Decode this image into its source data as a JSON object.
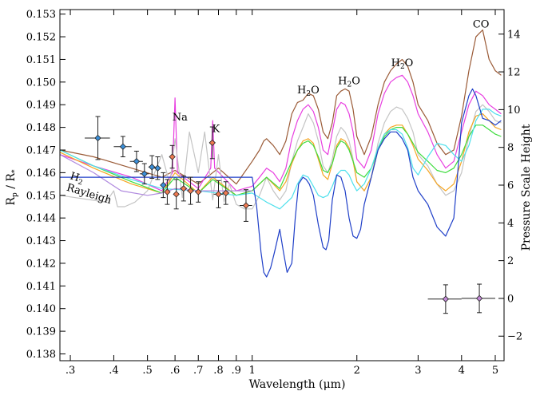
{
  "chart_data": {
    "type": "line",
    "xlabel": "Wavelength (μm)",
    "ylabel_left": "Rp / R*",
    "ylabel_right": "Pressure Scale Height",
    "x_scale": "log",
    "xlim": [
      0.28,
      5.3
    ],
    "ylim": [
      0.1377,
      0.1532
    ],
    "ylim_right": [
      -3.3,
      15.3
    ],
    "x_ticks": [
      {
        "value": 0.3,
        "label": ".3"
      },
      {
        "value": 0.4,
        "label": ".4"
      },
      {
        "value": 0.5,
        "label": ".5"
      },
      {
        "value": 0.6,
        "label": ".6"
      },
      {
        "value": 0.7,
        "label": ".7"
      },
      {
        "value": 0.8,
        "label": ".8"
      },
      {
        "value": 0.9,
        "label": ".9"
      },
      {
        "value": 1,
        "label": "1"
      },
      {
        "value": 2,
        "label": "2"
      },
      {
        "value": 3,
        "label": "3"
      },
      {
        "value": 4,
        "label": "4"
      },
      {
        "value": 5,
        "label": "5"
      }
    ],
    "y_ticks": [
      {
        "value": 0.138,
        "label": "0.138"
      },
      {
        "value": 0.139,
        "label": "0.139"
      },
      {
        "value": 0.14,
        "label": "0.140"
      },
      {
        "value": 0.141,
        "label": "0.141"
      },
      {
        "value": 0.142,
        "label": "0.142"
      },
      {
        "value": 0.143,
        "label": "0.143"
      },
      {
        "value": 0.144,
        "label": "0.144"
      },
      {
        "value": 0.145,
        "label": "0.145"
      },
      {
        "value": 0.146,
        "label": "0.146"
      },
      {
        "value": 0.147,
        "label": "0.147"
      },
      {
        "value": 0.148,
        "label": "0.148"
      },
      {
        "value": 0.149,
        "label": "0.149"
      },
      {
        "value": 0.15,
        "label": "0.150"
      },
      {
        "value": 0.151,
        "label": "0.151"
      },
      {
        "value": 0.152,
        "label": "0.152"
      },
      {
        "value": 0.153,
        "label": "0.153"
      }
    ],
    "y_ticks_right": [
      {
        "value": -2,
        "label": "−2"
      },
      {
        "value": 0,
        "label": "0"
      },
      {
        "value": 2,
        "label": "2"
      },
      {
        "value": 4,
        "label": "4"
      },
      {
        "value": 6,
        "label": "6"
      },
      {
        "value": 8,
        "label": "8"
      },
      {
        "value": 10,
        "label": "10"
      },
      {
        "value": 12,
        "label": "12"
      },
      {
        "value": 14,
        "label": "14"
      }
    ],
    "annotations": [
      {
        "text": "Na",
        "x": 0.62,
        "y": 0.1483
      },
      {
        "text": "K",
        "x": 0.787,
        "y": 0.1478
      },
      {
        "text": "H2O",
        "x": 1.45,
        "y": 0.1495
      },
      {
        "text": "H2O",
        "x": 1.9,
        "y": 0.1499
      },
      {
        "text": "H2O",
        "x": 2.7,
        "y": 0.1507
      },
      {
        "text": "CO",
        "x": 4.55,
        "y": 0.1524
      }
    ],
    "rayleigh_label": {
      "text": "Rayleigh",
      "subscript": "2",
      "prefix": "H"
    },
    "series": [
      {
        "color": "#9a5a36",
        "x": [
          0.28,
          0.35,
          0.45,
          0.55,
          0.6,
          0.7,
          0.8,
          0.9,
          1.0,
          1.05,
          1.08,
          1.1,
          1.15,
          1.2,
          1.25,
          1.3,
          1.35,
          1.4,
          1.45,
          1.5,
          1.55,
          1.6,
          1.65,
          1.7,
          1.75,
          1.8,
          1.85,
          1.9,
          1.95,
          2.0,
          2.1,
          2.2,
          2.3,
          2.4,
          2.5,
          2.6,
          2.7,
          2.8,
          2.9,
          3.0,
          3.2,
          3.4,
          3.6,
          3.8,
          4.0,
          4.2,
          4.4,
          4.6,
          4.8,
          5.0,
          5.2
        ],
        "y": [
          0.147,
          0.1467,
          0.1462,
          0.1458,
          0.1461,
          0.1455,
          0.1462,
          0.1455,
          0.1465,
          0.147,
          0.1474,
          0.1475,
          0.1472,
          0.1468,
          0.1474,
          0.1486,
          0.1491,
          0.1492,
          0.1495,
          0.1494,
          0.1488,
          0.1478,
          0.1475,
          0.1482,
          0.1494,
          0.1496,
          0.1497,
          0.1496,
          0.1488,
          0.1476,
          0.1468,
          0.1476,
          0.149,
          0.15,
          0.1505,
          0.1508,
          0.151,
          0.1507,
          0.15,
          0.149,
          0.1483,
          0.1473,
          0.1468,
          0.147,
          0.1485,
          0.1505,
          0.152,
          0.1523,
          0.151,
          0.1505,
          0.1503
        ]
      },
      {
        "color": "#e83fe0",
        "x": [
          0.28,
          0.35,
          0.45,
          0.55,
          0.59,
          0.6,
          0.61,
          0.7,
          0.76,
          0.77,
          0.78,
          0.9,
          1.0,
          1.05,
          1.1,
          1.15,
          1.2,
          1.25,
          1.3,
          1.35,
          1.4,
          1.45,
          1.5,
          1.55,
          1.6,
          1.65,
          1.7,
          1.75,
          1.8,
          1.85,
          1.9,
          1.95,
          2.0,
          2.1,
          2.2,
          2.3,
          2.4,
          2.5,
          2.6,
          2.7,
          2.8,
          2.9,
          3.0,
          3.2,
          3.4,
          3.6,
          3.8,
          4.0,
          4.2,
          4.4,
          4.6,
          4.8,
          5.0,
          5.2
        ],
        "y": [
          0.1468,
          0.1463,
          0.1458,
          0.1452,
          0.146,
          0.1493,
          0.146,
          0.1453,
          0.1462,
          0.1483,
          0.1462,
          0.1452,
          0.1454,
          0.1458,
          0.1462,
          0.146,
          0.1456,
          0.1462,
          0.1475,
          0.1483,
          0.1488,
          0.149,
          0.1487,
          0.148,
          0.147,
          0.1468,
          0.1478,
          0.1488,
          0.1491,
          0.149,
          0.1486,
          0.1478,
          0.1466,
          0.1462,
          0.147,
          0.1486,
          0.1495,
          0.15,
          0.1502,
          0.1503,
          0.15,
          0.1494,
          0.1486,
          0.1478,
          0.1468,
          0.1462,
          0.1465,
          0.1478,
          0.149,
          0.1496,
          0.1494,
          0.149,
          0.1488,
          0.1486
        ]
      },
      {
        "color": "#c4c4c4",
        "x": [
          0.28,
          0.38,
          0.4,
          0.41,
          0.43,
          0.46,
          0.5,
          0.55,
          0.58,
          0.6,
          0.63,
          0.66,
          0.7,
          0.73,
          0.77,
          0.8,
          0.83,
          0.86,
          0.9,
          0.95,
          1.0,
          1.05,
          1.1,
          1.15,
          1.2,
          1.25,
          1.3,
          1.35,
          1.4,
          1.45,
          1.5,
          1.55,
          1.6,
          1.65,
          1.7,
          1.75,
          1.8,
          1.85,
          1.9,
          1.95,
          2.0,
          2.1,
          2.2,
          2.3,
          2.4,
          2.5,
          2.6,
          2.7,
          2.8,
          2.9,
          3.0,
          3.2,
          3.4,
          3.6,
          3.8,
          4.0,
          4.2,
          4.4,
          4.6,
          4.8,
          5.0,
          5.2
        ],
        "y": [
          0.145,
          0.1447,
          0.1452,
          0.1445,
          0.1445,
          0.1447,
          0.1452,
          0.1468,
          0.1455,
          0.1475,
          0.1449,
          0.1478,
          0.146,
          0.1478,
          0.1448,
          0.1468,
          0.1447,
          0.1455,
          0.1446,
          0.1444,
          0.1444,
          0.145,
          0.1458,
          0.1452,
          0.1448,
          0.1452,
          0.1465,
          0.1474,
          0.148,
          0.1486,
          0.1482,
          0.1474,
          0.1463,
          0.146,
          0.1466,
          0.1476,
          0.148,
          0.1478,
          0.1474,
          0.1466,
          0.1456,
          0.1452,
          0.1458,
          0.1473,
          0.1482,
          0.1487,
          0.1489,
          0.1488,
          0.1484,
          0.1478,
          0.1468,
          0.1463,
          0.1455,
          0.145,
          0.1452,
          0.146,
          0.1476,
          0.1487,
          0.149,
          0.1487,
          0.1483,
          0.1482
        ]
      },
      {
        "color": "#f5a623",
        "x": [
          0.28,
          0.35,
          0.45,
          0.55,
          0.6,
          0.7,
          0.77,
          0.9,
          1.0,
          1.05,
          1.1,
          1.15,
          1.2,
          1.25,
          1.3,
          1.35,
          1.4,
          1.45,
          1.5,
          1.55,
          1.6,
          1.65,
          1.7,
          1.75,
          1.8,
          1.85,
          1.9,
          1.95,
          2.0,
          2.1,
          2.2,
          2.3,
          2.4,
          2.5,
          2.6,
          2.7,
          2.8,
          2.9,
          3.0,
          3.2,
          3.4,
          3.6,
          3.8,
          4.0,
          4.2,
          4.4,
          4.6,
          4.8,
          5.0,
          5.2
        ],
        "y": [
          0.1469,
          0.1462,
          0.1455,
          0.1451,
          0.146,
          0.1451,
          0.1458,
          0.145,
          0.1452,
          0.1455,
          0.1458,
          0.1455,
          0.1452,
          0.1456,
          0.1464,
          0.147,
          0.1474,
          0.1475,
          0.1473,
          0.1466,
          0.1459,
          0.1457,
          0.1464,
          0.1472,
          0.1475,
          0.1474,
          0.1471,
          0.1465,
          0.1456,
          0.1452,
          0.1458,
          0.147,
          0.1477,
          0.148,
          0.1481,
          0.1481,
          0.1477,
          0.1472,
          0.1466,
          0.1461,
          0.1455,
          0.1452,
          0.1455,
          0.1465,
          0.1478,
          0.1485,
          0.1486,
          0.1483,
          0.148,
          0.1479
        ]
      },
      {
        "color": "#3ddc3d",
        "x": [
          0.28,
          0.35,
          0.45,
          0.55,
          0.6,
          0.7,
          0.77,
          0.9,
          1.0,
          1.1,
          1.2,
          1.3,
          1.35,
          1.4,
          1.45,
          1.5,
          1.55,
          1.6,
          1.65,
          1.7,
          1.75,
          1.8,
          1.85,
          1.9,
          1.95,
          2.0,
          2.1,
          2.2,
          2.3,
          2.4,
          2.5,
          2.6,
          2.7,
          2.8,
          2.9,
          3.0,
          3.2,
          3.4,
          3.6,
          3.8,
          4.0,
          4.2,
          4.4,
          4.6,
          4.8,
          5.0,
          5.2
        ],
        "y": [
          0.147,
          0.1463,
          0.1456,
          0.1451,
          0.1458,
          0.1451,
          0.1457,
          0.145,
          0.1452,
          0.1458,
          0.1453,
          0.1465,
          0.147,
          0.1473,
          0.1474,
          0.1472,
          0.1467,
          0.1461,
          0.146,
          0.1464,
          0.1471,
          0.1474,
          0.1473,
          0.147,
          0.1465,
          0.146,
          0.1458,
          0.1462,
          0.147,
          0.1476,
          0.1479,
          0.148,
          0.148,
          0.1477,
          0.1473,
          0.1469,
          0.1465,
          0.1461,
          0.146,
          0.1462,
          0.1468,
          0.1476,
          0.1481,
          0.1481,
          0.1479,
          0.1477,
          0.1476
        ]
      },
      {
        "color": "#4fe0ec",
        "x": [
          0.28,
          0.35,
          0.45,
          0.55,
          0.7,
          0.9,
          1.0,
          1.1,
          1.2,
          1.3,
          1.35,
          1.4,
          1.45,
          1.5,
          1.55,
          1.6,
          1.65,
          1.7,
          1.75,
          1.8,
          1.85,
          1.9,
          1.95,
          2.0,
          2.1,
          2.2,
          2.3,
          2.4,
          2.5,
          2.6,
          2.7,
          2.8,
          2.9,
          3.0,
          3.2,
          3.4,
          3.6,
          3.8,
          4.0,
          4.2,
          4.4,
          4.6,
          4.8,
          5.0,
          5.2
        ],
        "y": [
          0.147,
          0.1463,
          0.1457,
          0.1453,
          0.1452,
          0.145,
          0.1451,
          0.1447,
          0.1444,
          0.1449,
          0.1455,
          0.1459,
          0.1458,
          0.1454,
          0.145,
          0.1449,
          0.145,
          0.1454,
          0.1459,
          0.1461,
          0.1461,
          0.1459,
          0.1455,
          0.1452,
          0.1455,
          0.1462,
          0.1471,
          0.1477,
          0.1479,
          0.1479,
          0.1477,
          0.1471,
          0.1462,
          0.1459,
          0.1467,
          0.1473,
          0.1472,
          0.1468,
          0.1465,
          0.1472,
          0.1483,
          0.1488,
          0.1488,
          0.1486,
          0.1485
        ]
      },
      {
        "color": "#b08adf",
        "x": [
          0.28,
          0.35,
          0.42,
          0.5,
          0.55,
          0.6,
          0.7,
          0.8,
          0.9,
          1.0
        ],
        "y": [
          0.1468,
          0.146,
          0.1452,
          0.145,
          0.1451,
          0.1453,
          0.1452,
          0.1452,
          0.1452,
          0.1452
        ]
      },
      {
        "color": "#1f3fc8",
        "x": [
          0.28,
          0.4,
          0.5,
          0.6,
          0.7,
          0.8,
          0.9,
          1.0,
          1.03,
          1.06,
          1.08,
          1.1,
          1.13,
          1.16,
          1.2,
          1.23,
          1.26,
          1.3,
          1.33,
          1.36,
          1.4,
          1.43,
          1.46,
          1.5,
          1.55,
          1.6,
          1.63,
          1.66,
          1.7,
          1.75,
          1.8,
          1.85,
          1.9,
          1.95,
          2.0,
          2.05,
          2.1,
          2.2,
          2.3,
          2.4,
          2.5,
          2.6,
          2.7,
          2.8,
          2.9,
          3.0,
          3.2,
          3.4,
          3.6,
          3.8,
          3.9,
          4.0,
          4.2,
          4.3,
          4.4,
          4.6,
          4.8,
          5.0,
          5.2
        ],
        "y": [
          0.1458,
          0.1458,
          0.1458,
          0.1458,
          0.1458,
          0.1458,
          0.1458,
          0.1458,
          0.1445,
          0.1425,
          0.1416,
          0.1414,
          0.1418,
          0.1425,
          0.1435,
          0.1425,
          0.1416,
          0.142,
          0.144,
          0.1455,
          0.1458,
          0.1457,
          0.1455,
          0.145,
          0.1437,
          0.1427,
          0.1426,
          0.143,
          0.1448,
          0.1459,
          0.1458,
          0.1452,
          0.144,
          0.1432,
          0.1431,
          0.1435,
          0.1446,
          0.1458,
          0.147,
          0.1475,
          0.1478,
          0.1478,
          0.1475,
          0.147,
          0.1458,
          0.1452,
          0.1446,
          0.1436,
          0.1432,
          0.144,
          0.146,
          0.1482,
          0.1494,
          0.1497,
          0.1494,
          0.1484,
          0.1483,
          0.1481,
          0.1483
        ]
      }
    ],
    "points_blue": [
      {
        "x": 0.36,
        "y": 0.14753,
        "xerr": 0.03,
        "yerr": 0.00095
      },
      {
        "x": 0.425,
        "y": 0.14715,
        "xerr": 0.025,
        "yerr": 0.00045
      },
      {
        "x": 0.465,
        "y": 0.1465,
        "xerr": 0.02,
        "yerr": 0.00045
      },
      {
        "x": 0.49,
        "y": 0.14595,
        "xerr": 0.015,
        "yerr": 0.00045
      },
      {
        "x": 0.515,
        "y": 0.14625,
        "xerr": 0.012,
        "yerr": 0.0005
      },
      {
        "x": 0.535,
        "y": 0.1462,
        "xerr": 0.012,
        "yerr": 0.0005
      },
      {
        "x": 0.555,
        "y": 0.14545,
        "xerr": 0.01,
        "yerr": 0.00055
      }
    ],
    "points_orange": [
      {
        "x": 0.57,
        "y": 0.14515,
        "xerr": 0.01,
        "yerr": 0.00055
      },
      {
        "x": 0.589,
        "y": 0.1467,
        "xerr": 0.004,
        "yerr": 0.0005
      },
      {
        "x": 0.605,
        "y": 0.14505,
        "xerr": 0.01,
        "yerr": 0.00065
      },
      {
        "x": 0.635,
        "y": 0.1453,
        "xerr": 0.015,
        "yerr": 0.00055
      },
      {
        "x": 0.665,
        "y": 0.1452,
        "xerr": 0.015,
        "yerr": 0.0006
      },
      {
        "x": 0.7,
        "y": 0.14515,
        "xerr": 0.015,
        "yerr": 0.00045
      },
      {
        "x": 0.768,
        "y": 0.14732,
        "xerr": 0.004,
        "yerr": 0.0007
      },
      {
        "x": 0.8,
        "y": 0.14505,
        "xerr": 0.025,
        "yerr": 0.0006
      },
      {
        "x": 0.84,
        "y": 0.1451,
        "xerr": 0.02,
        "yerr": 0.0005
      },
      {
        "x": 0.96,
        "y": 0.14455,
        "xerr": 0.04,
        "yerr": 0.0007
      }
    ],
    "points_purple": [
      {
        "x": 3.6,
        "y": 0.14042,
        "xerr": 0.4,
        "yerr": 0.00063
      },
      {
        "x": 4.5,
        "y": 0.14045,
        "xerr": 0.5,
        "yerr": 0.00063
      }
    ]
  }
}
